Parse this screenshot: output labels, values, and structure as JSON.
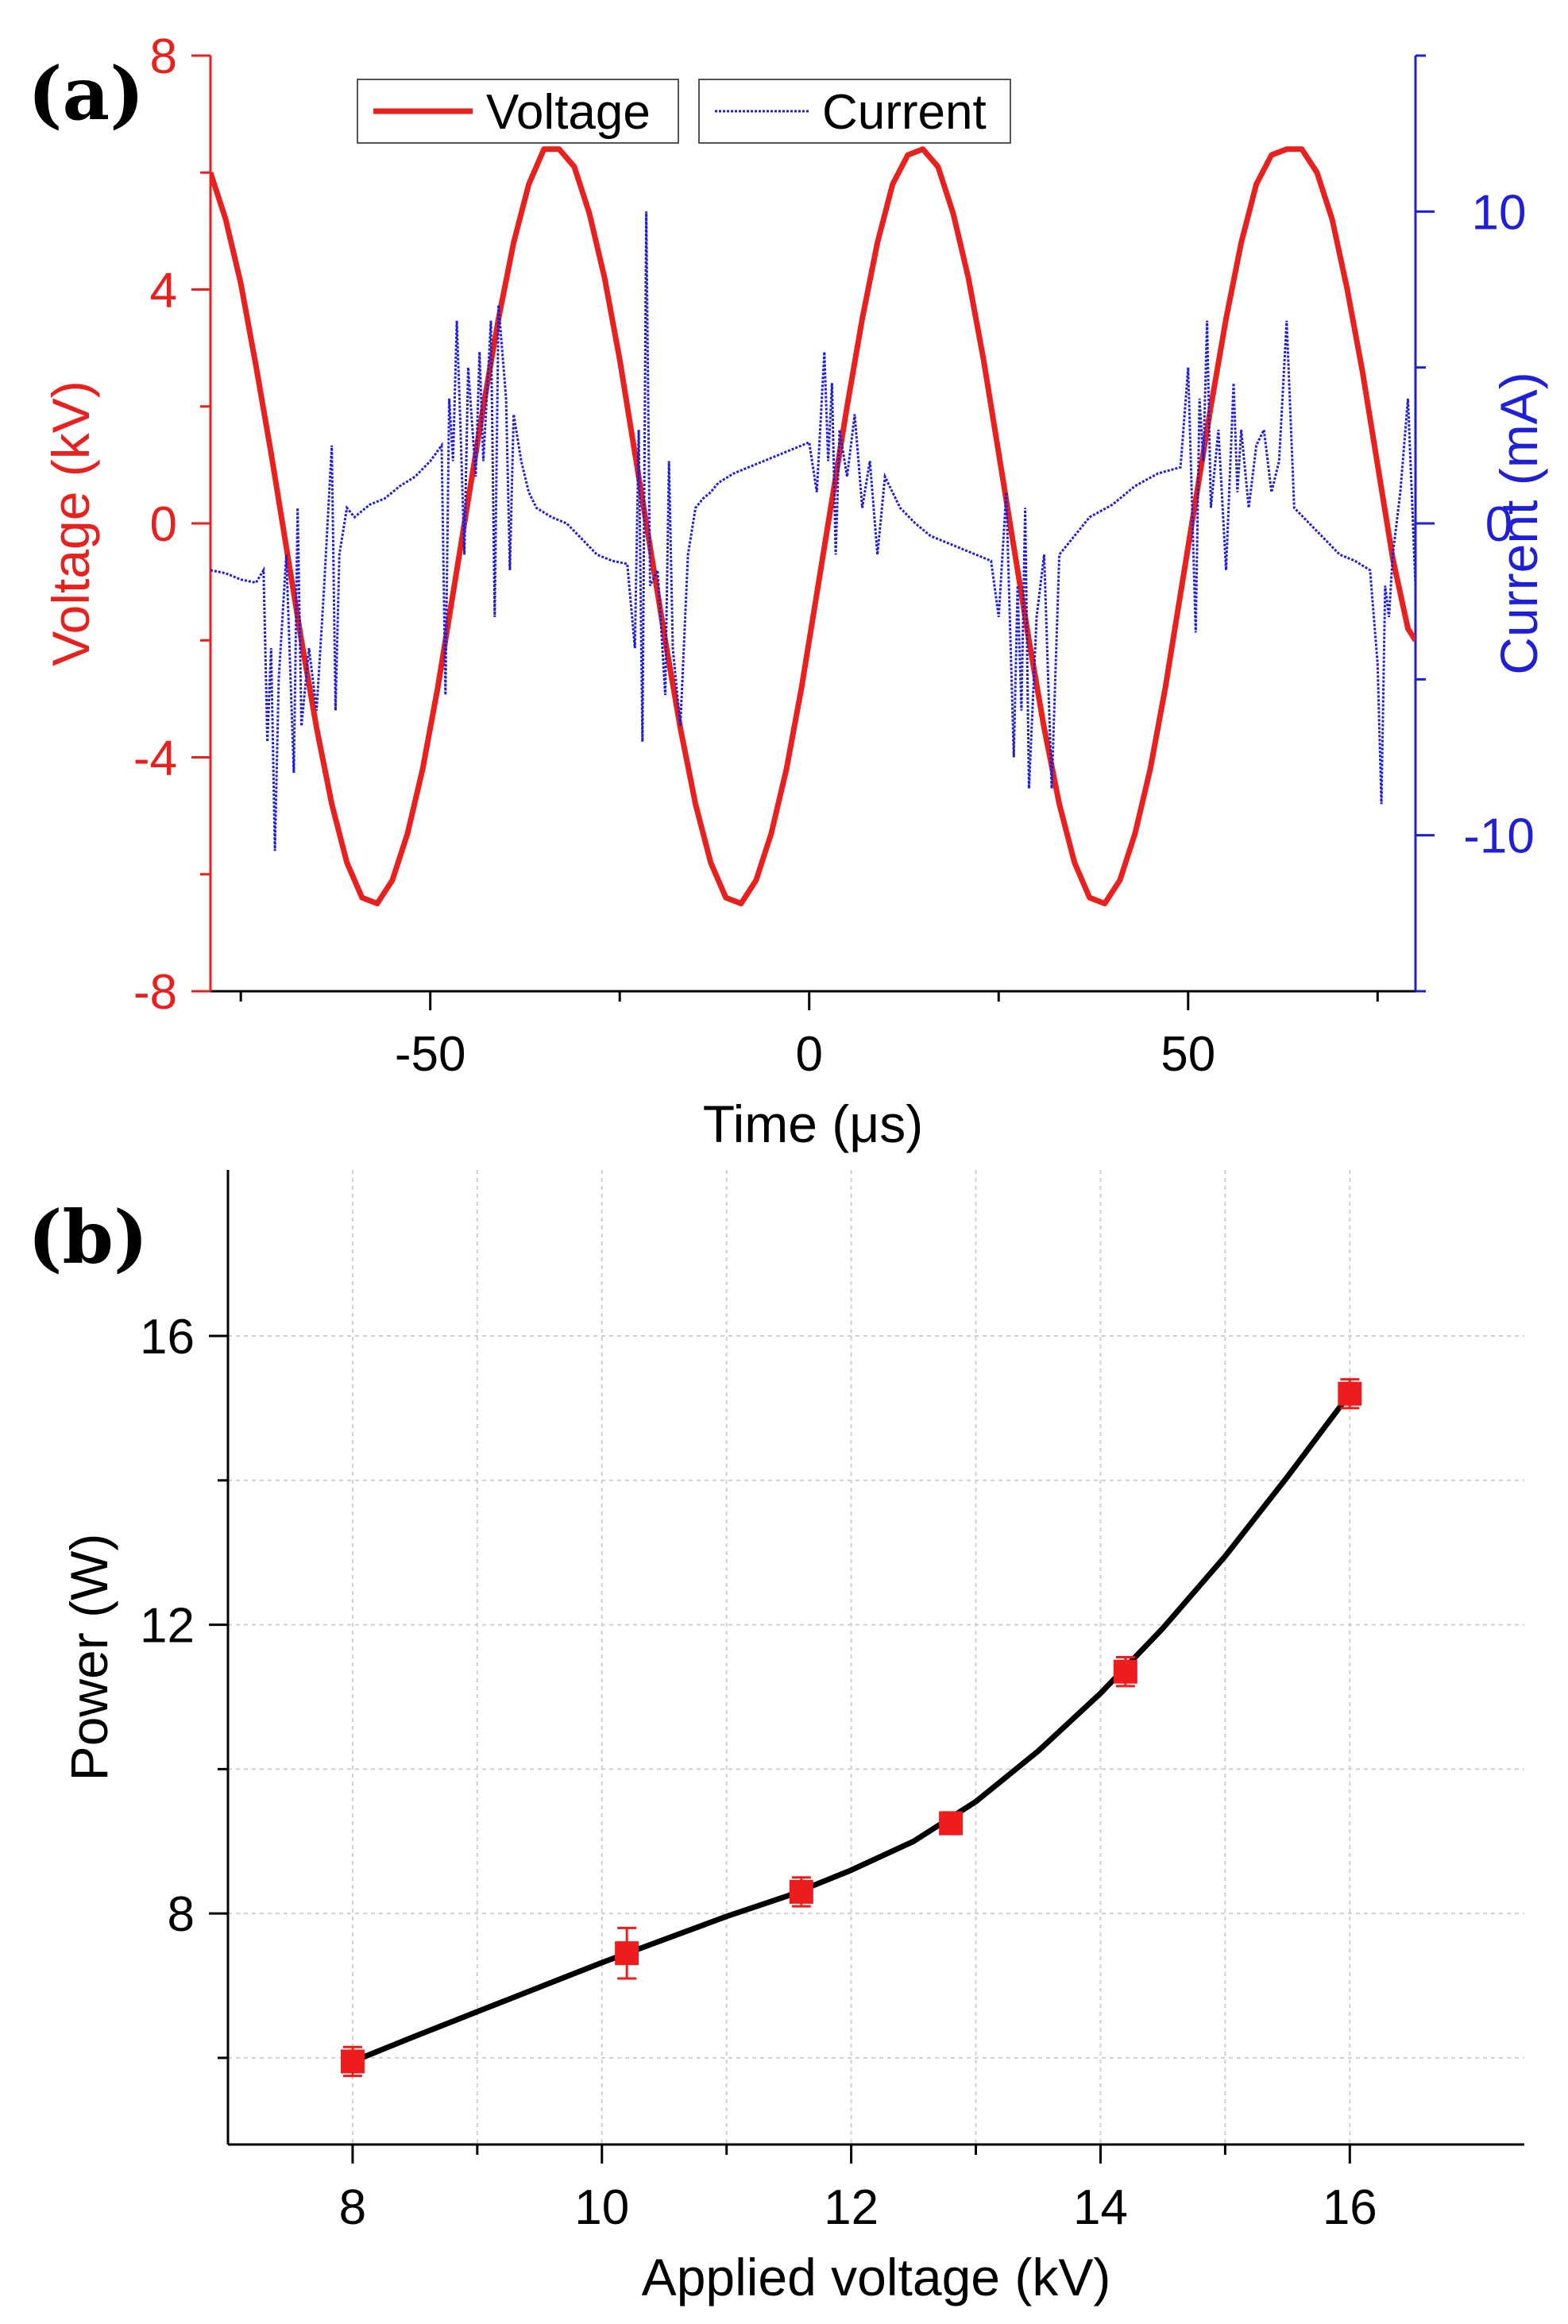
{
  "panel_a_label": "(a)",
  "panel_b_label": "(b)",
  "colors": {
    "voltage": "#e8201e",
    "current": "#1f1fd8",
    "power_fit": "#000000",
    "power_points": "#ee1c1c",
    "grid": "#cfcfcf"
  },
  "chart_data": [
    {
      "type": "line",
      "xlabel": "Time (μs)",
      "ylabel": "Voltage (kV)",
      "ylabel_right": "Current (mA)",
      "xlim": [
        -79,
        80
      ],
      "ylim": [
        -8,
        8
      ],
      "ylim_right": [
        -15,
        15
      ],
      "xticks": [
        -50,
        0,
        50
      ],
      "yticks": [
        -8,
        -4,
        0,
        4,
        8
      ],
      "yticks_right": [
        -10,
        0,
        10
      ],
      "grid": false,
      "legend_position": "top",
      "series": [
        {
          "name": "Voltage",
          "axis": "left",
          "style": "solid",
          "x": [
            -79,
            -77,
            -75,
            -73,
            -71,
            -69,
            -67,
            -65,
            -63,
            -61,
            -59,
            -57,
            -55,
            -53,
            -51,
            -49,
            -47,
            -45,
            -43,
            -41,
            -39,
            -37,
            -35,
            -33,
            -31,
            -29,
            -27,
            -25,
            -23,
            -21,
            -19,
            -17,
            -15,
            -13,
            -11,
            -9,
            -7,
            -5,
            -3,
            -1,
            1,
            3,
            5,
            7,
            9,
            11,
            13,
            15,
            17,
            19,
            21,
            23,
            25,
            27,
            29,
            31,
            33,
            35,
            37,
            39,
            41,
            43,
            45,
            47,
            49,
            51,
            53,
            55,
            57,
            59,
            61,
            63,
            65,
            67,
            69,
            71,
            73,
            75,
            77,
            79,
            80
          ],
          "values": [
            6.0,
            5.2,
            4.1,
            2.7,
            1.2,
            -0.4,
            -2.0,
            -3.5,
            -4.8,
            -5.8,
            -6.4,
            -6.5,
            -6.1,
            -5.3,
            -4.2,
            -2.8,
            -1.2,
            0.4,
            2.0,
            3.5,
            4.8,
            5.8,
            6.4,
            6.4,
            6.1,
            5.3,
            4.2,
            2.8,
            1.2,
            -0.4,
            -2.0,
            -3.5,
            -4.8,
            -5.8,
            -6.4,
            -6.5,
            -6.1,
            -5.3,
            -4.2,
            -2.8,
            -1.2,
            0.4,
            2.0,
            3.5,
            4.8,
            5.8,
            6.3,
            6.4,
            6.1,
            5.3,
            4.2,
            2.8,
            1.2,
            -0.4,
            -2.0,
            -3.5,
            -4.8,
            -5.8,
            -6.4,
            -6.5,
            -6.1,
            -5.3,
            -4.2,
            -2.8,
            -1.2,
            0.4,
            2.0,
            3.5,
            4.8,
            5.8,
            6.3,
            6.4,
            6.4,
            6.0,
            5.2,
            4.0,
            2.6,
            1.0,
            -0.6,
            -1.8,
            -2.0
          ]
        },
        {
          "name": "Current",
          "axis": "right",
          "style": "dotted",
          "x": [
            -79,
            -77,
            -75,
            -73,
            -72,
            -71.5,
            -71,
            -70.5,
            -70,
            -69,
            -68,
            -67.5,
            -67,
            -66,
            -65,
            -64,
            -63,
            -62.5,
            -62,
            -61,
            -60,
            -58,
            -56,
            -54,
            -52,
            -50,
            -48.5,
            -48,
            -47.5,
            -47,
            -46.5,
            -46,
            -45.5,
            -45,
            -44,
            -43.5,
            -43,
            -42,
            -41.5,
            -41,
            -40,
            -39.5,
            -39,
            -38,
            -37,
            -36,
            -34,
            -32,
            -30,
            -28,
            -26,
            -24,
            -23,
            -22.5,
            -22,
            -21.5,
            -21,
            -20,
            -19,
            -18.5,
            -18,
            -17,
            -16,
            -15,
            -14,
            -13,
            -12,
            -10,
            -8,
            -6,
            -4,
            -2,
            0,
            1,
            2,
            2.5,
            3,
            3.5,
            4,
            5,
            6,
            7,
            8,
            9,
            10,
            12,
            14,
            16,
            18,
            20,
            22,
            24,
            25,
            26,
            27,
            27.5,
            28,
            28.5,
            29,
            30,
            31,
            32,
            33,
            35,
            37,
            40,
            43,
            46,
            49,
            50,
            51,
            51.5,
            52,
            52.5,
            53,
            54,
            55,
            56,
            56.5,
            57,
            58,
            59,
            60,
            61,
            62,
            63,
            64,
            66,
            68,
            70,
            72,
            74,
            75,
            75.5,
            76,
            76.5,
            77,
            78,
            79,
            80
          ],
          "values": [
            -1.5,
            -1.6,
            -1.8,
            -1.9,
            -1.5,
            -7.0,
            -4.0,
            -10.5,
            -5.0,
            -1.0,
            -8.0,
            0.5,
            -6.5,
            -4.0,
            -6.0,
            -2.0,
            2.5,
            -6.0,
            -1.0,
            0.5,
            0.2,
            0.6,
            0.8,
            1.2,
            1.5,
            2.0,
            2.5,
            -5.5,
            4.0,
            2.0,
            6.5,
            3.0,
            -1.0,
            5.0,
            1.5,
            5.5,
            2.0,
            6.5,
            -3.0,
            7.0,
            4.0,
            -1.5,
            3.5,
            2.0,
            1.0,
            0.5,
            0.2,
            0.0,
            -0.5,
            -1.0,
            -1.2,
            -1.3,
            -4.0,
            3.0,
            -7.0,
            10.0,
            -2.0,
            -1.5,
            -5.5,
            2.0,
            -4.0,
            -6.5,
            -1.0,
            0.5,
            0.8,
            1.0,
            1.3,
            1.6,
            1.8,
            2.0,
            2.2,
            2.4,
            2.6,
            1.0,
            5.5,
            2.0,
            4.5,
            -1.0,
            3.0,
            1.5,
            3.5,
            0.5,
            2.0,
            -1.0,
            1.5,
            0.5,
            0.0,
            -0.4,
            -0.6,
            -0.8,
            -1.0,
            -1.2,
            -3.0,
            1.0,
            -7.5,
            -2.0,
            -6.0,
            0.5,
            -8.5,
            -3.0,
            -1.0,
            -8.5,
            -1.0,
            -0.4,
            0.2,
            0.6,
            1.2,
            1.6,
            1.8,
            5.0,
            -3.5,
            4.0,
            2.0,
            6.5,
            0.5,
            3.0,
            -1.5,
            4.5,
            1.0,
            3.0,
            0.5,
            2.5,
            3.0,
            1.0,
            2.0,
            6.5,
            0.5,
            0.0,
            -0.5,
            -1.0,
            -1.2,
            -1.5,
            -4.5,
            -9.0,
            -2.0,
            -3.0,
            -1.0,
            1.0,
            4.0,
            -2.0
          ]
        }
      ]
    },
    {
      "type": "line",
      "xlabel": "Applied voltage (kV)",
      "ylabel": "Power (W)",
      "xlim": [
        7,
        17.4
      ],
      "ylim": [
        4.8,
        18.3
      ],
      "xticks": [
        8,
        10,
        12,
        14,
        16
      ],
      "xticks_minor": [
        9,
        11,
        13,
        15
      ],
      "yticks": [
        8,
        12,
        16
      ],
      "yticks_minor": [
        6,
        10,
        14
      ],
      "grid": true,
      "series": [
        {
          "name": "",
          "kind": "points_with_error",
          "x": [
            8,
            10.2,
            11.6,
            12.8,
            14.2,
            16
          ],
          "values": [
            5.95,
            7.45,
            8.3,
            9.25,
            11.35,
            15.2
          ],
          "errors": [
            0.2,
            0.35,
            0.2,
            0.15,
            0.2,
            0.2
          ]
        },
        {
          "name": "",
          "kind": "fit_line",
          "x": [
            8,
            8.5,
            9,
            9.5,
            10,
            10.5,
            11,
            11.5,
            12,
            12.5,
            13,
            13.5,
            14,
            14.5,
            15,
            15.5,
            16
          ],
          "values": [
            5.95,
            6.3,
            6.64,
            6.98,
            7.32,
            7.64,
            7.96,
            8.25,
            8.6,
            9.0,
            9.55,
            10.25,
            11.05,
            11.95,
            12.95,
            14.05,
            15.2
          ]
        }
      ]
    }
  ]
}
